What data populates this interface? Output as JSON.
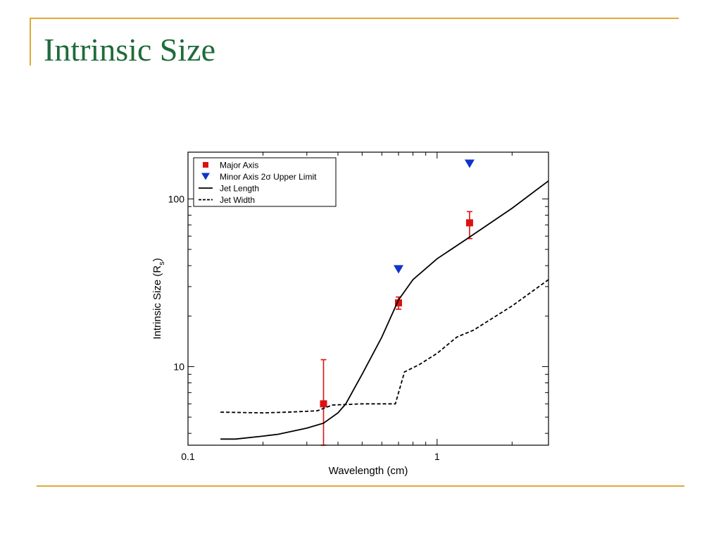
{
  "slide": {
    "title": "Intrinsic Size",
    "accent_color": "#e1a83a",
    "title_color": "#1f6b3a"
  },
  "chart_data": {
    "type": "scatter",
    "title": "",
    "xlabel": "Wavelength (cm)",
    "ylabel": "Intrinsic Size (R",
    "ylabel_subscript": "s",
    "ylabel_suffix": ")",
    "xscale": "log",
    "yscale": "log",
    "xlim": [
      0.1,
      2.8
    ],
    "ylim": [
      3.4,
      190
    ],
    "xticks": [
      {
        "value": 0.1,
        "label": "0.1"
      },
      {
        "value": 1,
        "label": "1"
      }
    ],
    "yticks": [
      {
        "value": 10,
        "label": "10"
      },
      {
        "value": 100,
        "label": "100"
      }
    ],
    "grid": false,
    "legend_position": "top-left",
    "series": [
      {
        "name": "Major Axis",
        "kind": "points",
        "marker": "square",
        "color": "#dd1111",
        "points": [
          {
            "x": 0.35,
            "y": 6.0,
            "err_low": 3.4,
            "err_high": 11.0
          },
          {
            "x": 0.7,
            "y": 24.0,
            "err_low": 22.0,
            "err_high": 26.0
          },
          {
            "x": 1.35,
            "y": 72.0,
            "err_low": 58.0,
            "err_high": 84.0
          }
        ]
      },
      {
        "name": "Minor Axis 2σ Upper Limit",
        "kind": "points",
        "marker": "triangle-down",
        "color": "#1133cc",
        "points": [
          {
            "x": 0.7,
            "y": 38.0
          },
          {
            "x": 1.35,
            "y": 162.0
          }
        ]
      },
      {
        "name": "Jet Length",
        "kind": "line",
        "dash": "solid",
        "color": "#000000",
        "points": [
          {
            "x": 0.135,
            "y": 3.7
          },
          {
            "x": 0.155,
            "y": 3.7
          },
          {
            "x": 0.2,
            "y": 3.85
          },
          {
            "x": 0.23,
            "y": 3.95
          },
          {
            "x": 0.3,
            "y": 4.3
          },
          {
            "x": 0.35,
            "y": 4.6
          },
          {
            "x": 0.4,
            "y": 5.3
          },
          {
            "x": 0.43,
            "y": 6.0
          },
          {
            "x": 0.5,
            "y": 9.0
          },
          {
            "x": 0.6,
            "y": 15.0
          },
          {
            "x": 0.7,
            "y": 25.0
          },
          {
            "x": 0.8,
            "y": 33.0
          },
          {
            "x": 1.0,
            "y": 44.0
          },
          {
            "x": 1.3,
            "y": 57.0
          },
          {
            "x": 2.0,
            "y": 88.0
          },
          {
            "x": 2.8,
            "y": 128.0
          }
        ]
      },
      {
        "name": "Jet Width",
        "kind": "line",
        "dash": "dashed",
        "color": "#000000",
        "points": [
          {
            "x": 0.135,
            "y": 5.35
          },
          {
            "x": 0.2,
            "y": 5.3
          },
          {
            "x": 0.25,
            "y": 5.35
          },
          {
            "x": 0.33,
            "y": 5.45
          },
          {
            "x": 0.38,
            "y": 5.9
          },
          {
            "x": 0.5,
            "y": 6.0
          },
          {
            "x": 0.68,
            "y": 6.0
          },
          {
            "x": 0.74,
            "y": 9.3
          },
          {
            "x": 0.85,
            "y": 10.3
          },
          {
            "x": 1.0,
            "y": 12.0
          },
          {
            "x": 1.2,
            "y": 15.0
          },
          {
            "x": 1.4,
            "y": 16.5
          },
          {
            "x": 2.0,
            "y": 23.0
          },
          {
            "x": 2.8,
            "y": 33.0
          }
        ]
      }
    ]
  }
}
